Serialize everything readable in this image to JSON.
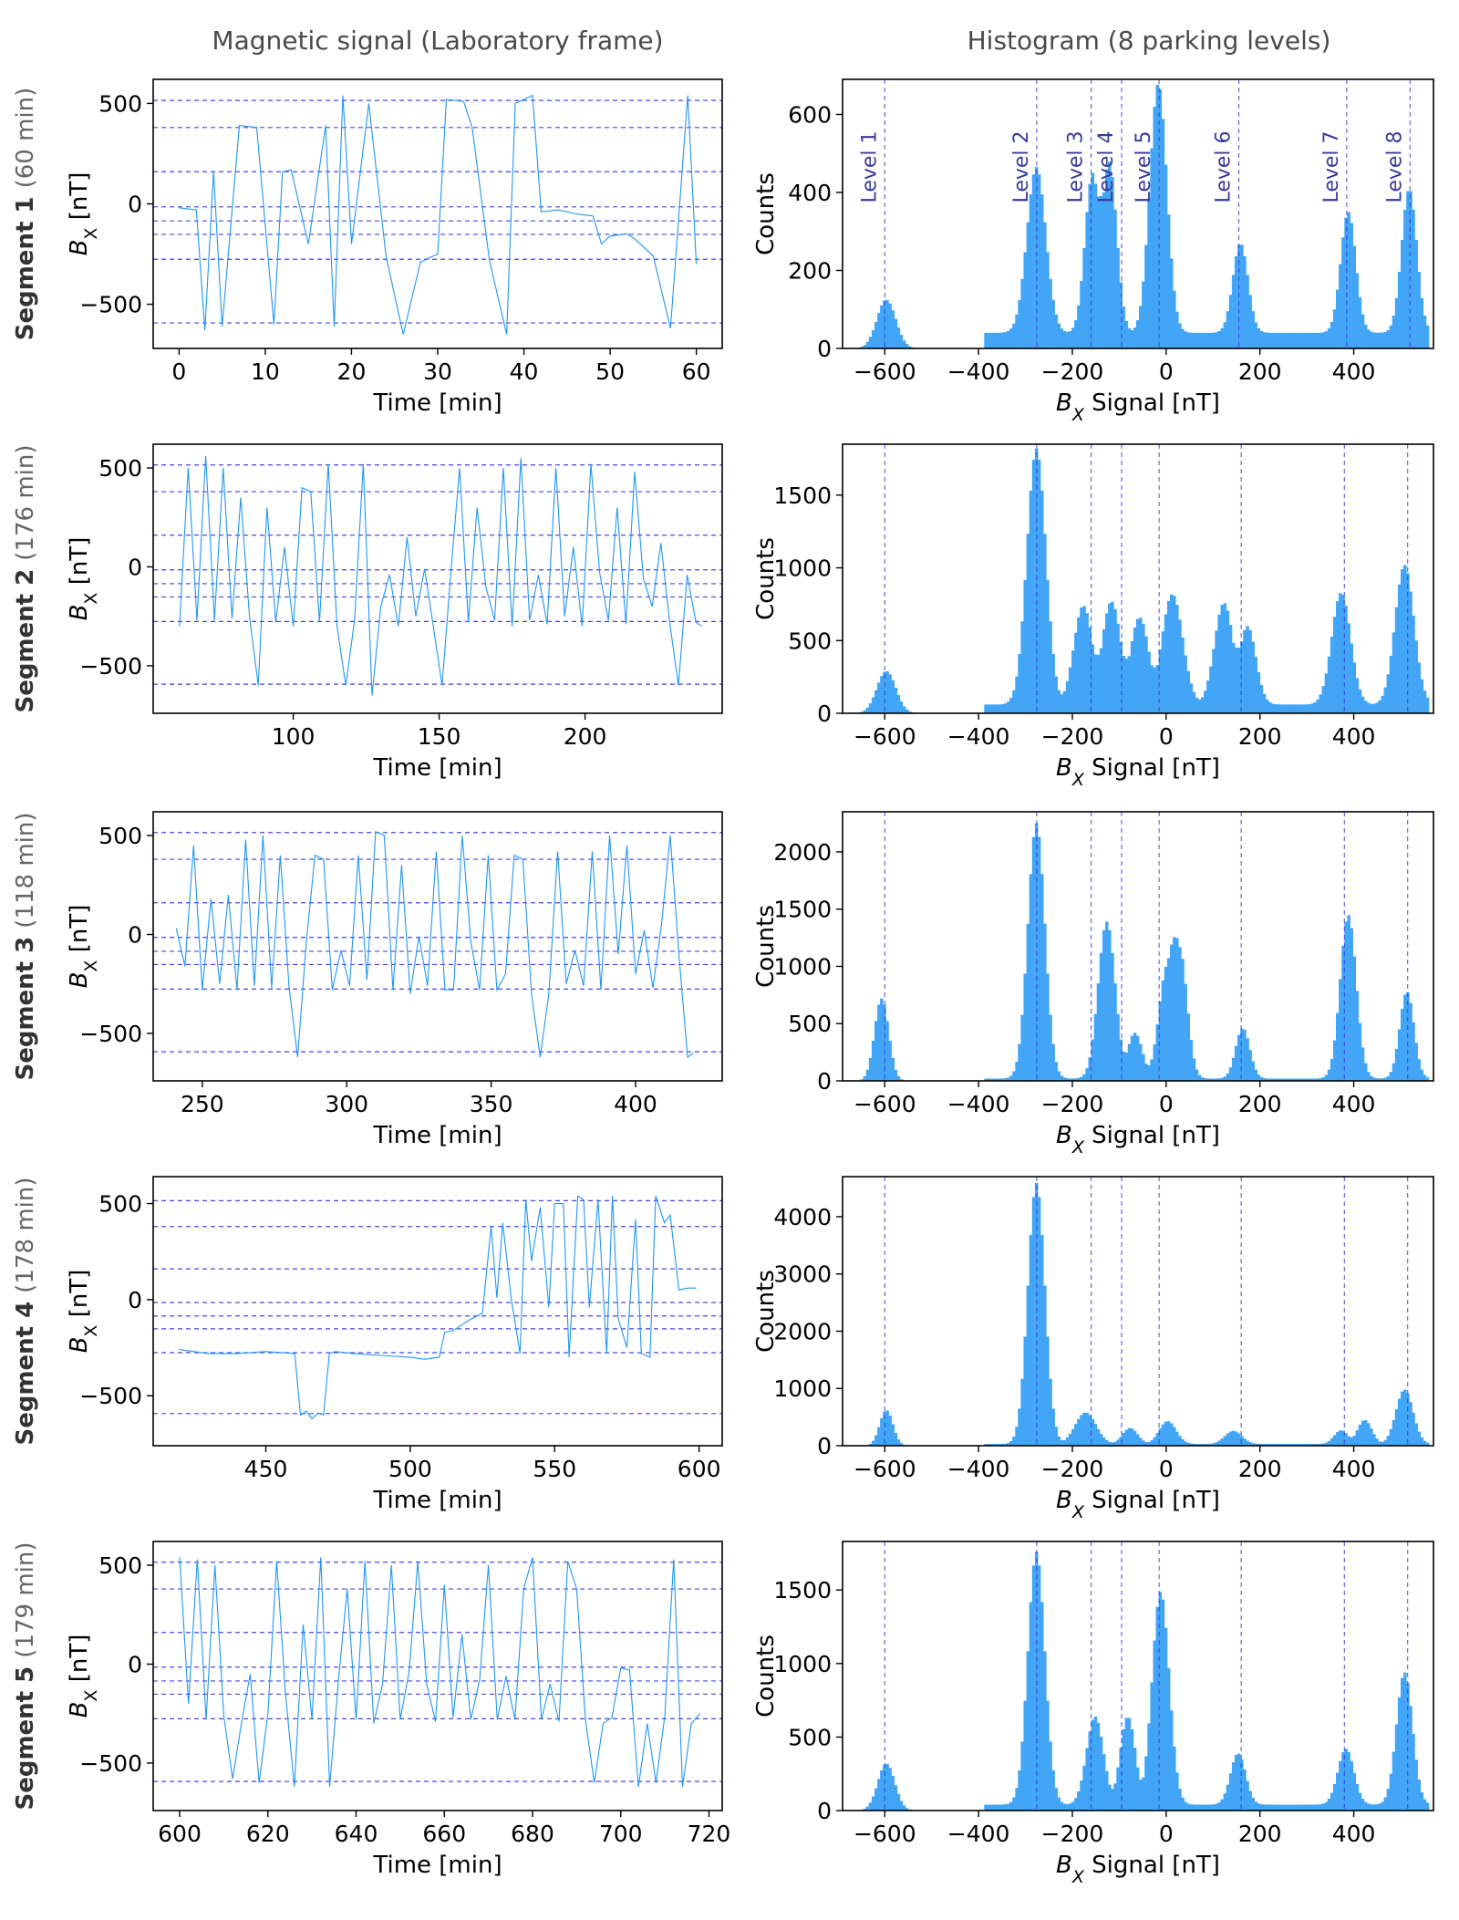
{
  "column_titles": {
    "left": "Magnetic signal (Laboratory frame)",
    "right": "Histogram (8 parking levels)"
  },
  "colors": {
    "trace": "#2196f3",
    "histogram": "#42a5f5",
    "reference": "#3333dd"
  },
  "chart_data": [
    {
      "type": "line",
      "segment": "Segment 1",
      "duration": "(60 min)",
      "xlabel": "Time [min]",
      "ylabel": "B_X [nT]",
      "xlim": [
        -3,
        63
      ],
      "ylim": [
        -720,
        620
      ],
      "xticks": [
        0,
        10,
        20,
        30,
        40,
        50,
        60
      ],
      "yticks": [
        -500,
        0,
        500
      ],
      "reference_levels": [
        -593,
        -276,
        -152,
        -85,
        -15,
        160,
        380,
        515
      ],
      "trace": {
        "x": [
          0,
          2,
          3,
          4,
          5,
          7,
          9,
          11,
          12,
          13,
          15,
          17,
          18,
          19,
          20,
          22,
          24,
          26,
          28,
          30,
          31,
          33,
          34,
          36,
          38,
          39,
          41,
          42,
          44,
          46,
          48,
          49,
          50,
          52,
          53,
          55,
          57,
          59,
          60
        ],
        "y": [
          -20,
          -30,
          -630,
          160,
          -610,
          390,
          380,
          -600,
          160,
          170,
          -200,
          390,
          -610,
          540,
          -200,
          500,
          -260,
          -650,
          -290,
          -250,
          520,
          510,
          380,
          -280,
          -650,
          500,
          540,
          -40,
          -30,
          -50,
          -60,
          -200,
          -160,
          -150,
          -180,
          -260,
          -620,
          540,
          -300
        ]
      }
    },
    {
      "type": "bar",
      "segment": "Segment 1",
      "xlabel": "B_X Signal [nT]",
      "ylabel": "Counts",
      "xlim": [
        -690,
        570
      ],
      "ylim": [
        0,
        690
      ],
      "xticks": [
        -600,
        -400,
        -200,
        0,
        200,
        400
      ],
      "yticks": [
        0,
        200,
        400,
        600
      ],
      "levels": [
        -600,
        -276,
        -160,
        -95,
        -15,
        155,
        385,
        520
      ],
      "level_labels": [
        "Level 1",
        "Level 2",
        "Level 3",
        "Level 4",
        "Level 5",
        "Level 6",
        "Level 7",
        "Level 8"
      ],
      "peaks": [
        {
          "center": -600,
          "height": 125,
          "width": 20
        },
        {
          "center": -280,
          "height": 425,
          "width": 20
        },
        {
          "center": -160,
          "height": 410,
          "width": 16
        },
        {
          "center": -125,
          "height": 440,
          "width": 16
        },
        {
          "center": -20,
          "height": 640,
          "width": 18
        },
        {
          "center": 155,
          "height": 230,
          "width": 16
        },
        {
          "center": 385,
          "height": 310,
          "width": 16
        },
        {
          "center": 515,
          "height": 370,
          "width": 16
        }
      ],
      "baseline": 40
    },
    {
      "type": "line",
      "segment": "Segment 2",
      "duration": "(176 min)",
      "xlabel": "Time [min]",
      "ylabel": "B_X [nT]",
      "xlim": [
        52,
        247
      ],
      "ylim": [
        -740,
        620
      ],
      "xticks": [
        100,
        150,
        200
      ],
      "yticks": [
        -500,
        0,
        500
      ],
      "reference_levels": [
        -593,
        -276,
        -152,
        -85,
        -15,
        160,
        380,
        515
      ],
      "trace": {
        "x": [
          61,
          64,
          67,
          70,
          73,
          76,
          79,
          82,
          85,
          88,
          91,
          94,
          97,
          100,
          103,
          106,
          109,
          112,
          115,
          118,
          121,
          124,
          127,
          130,
          133,
          136,
          139,
          142,
          145,
          148,
          151,
          154,
          157,
          160,
          163,
          166,
          169,
          172,
          175,
          178,
          181,
          184,
          187,
          190,
          193,
          196,
          199,
          202,
          205,
          208,
          211,
          214,
          217,
          220,
          223,
          226,
          229,
          232,
          235,
          238,
          240
        ],
        "y": [
          -300,
          500,
          -270,
          560,
          -270,
          500,
          -260,
          350,
          -250,
          -600,
          300,
          -280,
          100,
          -300,
          400,
          380,
          -280,
          520,
          -300,
          -600,
          -270,
          520,
          -650,
          -200,
          -40,
          -300,
          150,
          -250,
          -10,
          -300,
          -600,
          -30,
          500,
          -280,
          300,
          -100,
          -270,
          500,
          -300,
          550,
          -270,
          -40,
          -290,
          500,
          -250,
          100,
          -300,
          520,
          -30,
          -270,
          300,
          -290,
          480,
          -60,
          -200,
          120,
          -280,
          -600,
          -40,
          -280,
          -300
        ]
      }
    },
    {
      "type": "bar",
      "segment": "Segment 2",
      "xlabel": "B_X Signal [nT]",
      "ylabel": "Counts",
      "xlim": [
        -690,
        570
      ],
      "ylim": [
        0,
        1850
      ],
      "xticks": [
        -600,
        -400,
        -200,
        0,
        200,
        400
      ],
      "yticks": [
        0,
        500,
        1000,
        1500
      ],
      "levels": [
        -600,
        -276,
        -160,
        -95,
        -15,
        160,
        380,
        515
      ],
      "peaks": [
        {
          "center": -600,
          "height": 290,
          "width": 20
        },
        {
          "center": -280,
          "height": 1760,
          "width": 20
        },
        {
          "center": -180,
          "height": 680,
          "width": 20
        },
        {
          "center": -120,
          "height": 710,
          "width": 20
        },
        {
          "center": -60,
          "height": 600,
          "width": 20
        },
        {
          "center": 10,
          "height": 760,
          "width": 22
        },
        {
          "center": 120,
          "height": 700,
          "width": 20
        },
        {
          "center": 170,
          "height": 540,
          "width": 18
        },
        {
          "center": 370,
          "height": 770,
          "width": 20
        },
        {
          "center": 505,
          "height": 960,
          "width": 20
        }
      ],
      "baseline": 60
    },
    {
      "type": "line",
      "segment": "Segment 3",
      "duration": "(118 min)",
      "xlabel": "Time [min]",
      "ylabel": "B_X [nT]",
      "xlim": [
        233,
        430
      ],
      "ylim": [
        -740,
        620
      ],
      "xticks": [
        250,
        300,
        350,
        400
      ],
      "yticks": [
        -500,
        0,
        500
      ],
      "reference_levels": [
        -593,
        -276,
        -152,
        -85,
        -15,
        160,
        380,
        515
      ],
      "trace": {
        "x": [
          241,
          244,
          247,
          250,
          253,
          256,
          259,
          262,
          265,
          268,
          271,
          274,
          277,
          280,
          283,
          286,
          289,
          292,
          295,
          298,
          301,
          304,
          307,
          310,
          313,
          316,
          319,
          322,
          325,
          328,
          331,
          334,
          337,
          340,
          343,
          346,
          349,
          352,
          355,
          358,
          361,
          364,
          367,
          370,
          373,
          376,
          379,
          382,
          385,
          388,
          391,
          394,
          397,
          400,
          403,
          406,
          409,
          412,
          415,
          418,
          420
        ],
        "y": [
          30,
          -160,
          450,
          -280,
          180,
          -250,
          200,
          -280,
          480,
          -260,
          500,
          -270,
          400,
          -260,
          -620,
          -40,
          400,
          380,
          -280,
          -80,
          -260,
          400,
          -230,
          520,
          500,
          -280,
          350,
          -300,
          -10,
          -260,
          420,
          -280,
          -280,
          500,
          -40,
          -280,
          400,
          -280,
          -200,
          400,
          380,
          -300,
          -620,
          -300,
          420,
          -250,
          -80,
          -260,
          420,
          -280,
          500,
          -100,
          450,
          -200,
          20,
          -270,
          50,
          500,
          -100,
          -620,
          -600
        ]
      }
    },
    {
      "type": "bar",
      "segment": "Segment 3",
      "xlabel": "B_X Signal [nT]",
      "ylabel": "Counts",
      "xlim": [
        -690,
        570
      ],
      "ylim": [
        0,
        2350
      ],
      "xticks": [
        -600,
        -400,
        -200,
        0,
        200,
        400
      ],
      "yticks": [
        0,
        500,
        1000,
        1500,
        2000
      ],
      "levels": [
        -600,
        -276,
        -160,
        -95,
        -15,
        160,
        380,
        515
      ],
      "peaks": [
        {
          "center": -610,
          "height": 720,
          "width": 15
        },
        {
          "center": -280,
          "height": 2230,
          "width": 18
        },
        {
          "center": -130,
          "height": 1370,
          "width": 18
        },
        {
          "center": -70,
          "height": 400,
          "width": 16
        },
        {
          "center": 0,
          "height": 1000,
          "width": 18
        },
        {
          "center": 25,
          "height": 1150,
          "width": 16
        },
        {
          "center": 160,
          "height": 440,
          "width": 15
        },
        {
          "center": 385,
          "height": 1430,
          "width": 17
        },
        {
          "center": 510,
          "height": 760,
          "width": 15
        }
      ],
      "baseline": 20
    },
    {
      "type": "line",
      "segment": "Segment 4",
      "duration": "(178 min)",
      "xlabel": "Time [min]",
      "ylabel": "B_X [nT]",
      "xlim": [
        411,
        608
      ],
      "ylim": [
        -760,
        640
      ],
      "xticks": [
        450,
        500,
        550,
        600
      ],
      "yticks": [
        -500,
        0,
        500
      ],
      "reference_levels": [
        -593,
        -276,
        -152,
        -85,
        -15,
        160,
        380,
        515
      ],
      "trace": {
        "x": [
          420,
          430,
          440,
          450,
          460,
          462,
          464,
          466,
          468,
          470,
          472,
          474,
          480,
          490,
          500,
          505,
          510,
          512,
          515,
          520,
          525,
          528,
          530,
          532,
          535,
          538,
          540,
          542,
          545,
          548,
          550,
          553,
          555,
          558,
          560,
          562,
          565,
          568,
          570,
          572,
          575,
          578,
          580,
          583,
          585,
          588,
          590,
          593,
          596,
          599
        ],
        "y": [
          -260,
          -280,
          -280,
          -270,
          -280,
          -600,
          -580,
          -620,
          -590,
          -600,
          -280,
          -270,
          -280,
          -290,
          -300,
          -310,
          -300,
          -170,
          -160,
          -110,
          -70,
          380,
          10,
          400,
          0,
          -280,
          520,
          200,
          480,
          -40,
          500,
          500,
          -300,
          540,
          520,
          -40,
          520,
          -280,
          540,
          -100,
          -250,
          420,
          -280,
          -300,
          540,
          400,
          440,
          50,
          60,
          60
        ]
      }
    },
    {
      "type": "bar",
      "segment": "Segment 4",
      "xlabel": "B_X Signal [nT]",
      "ylabel": "Counts",
      "xlim": [
        -690,
        570
      ],
      "ylim": [
        0,
        4700
      ],
      "xticks": [
        -600,
        -400,
        -200,
        0,
        200,
        400
      ],
      "yticks": [
        0,
        1000,
        2000,
        3000,
        4000
      ],
      "levels": [
        -600,
        -276,
        -160,
        -95,
        -15,
        160,
        380,
        515
      ],
      "peaks": [
        {
          "center": -600,
          "height": 620,
          "width": 14
        },
        {
          "center": -280,
          "height": 4560,
          "width": 18
        },
        {
          "center": -175,
          "height": 550,
          "width": 22
        },
        {
          "center": -80,
          "height": 280,
          "width": 16
        },
        {
          "center": 0,
          "height": 400,
          "width": 18
        },
        {
          "center": 140,
          "height": 230,
          "width": 18
        },
        {
          "center": 370,
          "height": 240,
          "width": 15
        },
        {
          "center": 420,
          "height": 420,
          "width": 15
        },
        {
          "center": 505,
          "height": 950,
          "width": 18
        }
      ],
      "baseline": 30
    },
    {
      "type": "line",
      "segment": "Segment 5",
      "duration": "(179 min)",
      "xlabel": "Time [min]",
      "ylabel": "B_X [nT]",
      "xlim": [
        594,
        723
      ],
      "ylim": [
        -740,
        620
      ],
      "xticks": [
        600,
        620,
        640,
        660,
        680,
        700,
        720
      ],
      "yticks": [
        -500,
        0,
        500
      ],
      "reference_levels": [
        -593,
        -276,
        -152,
        -85,
        -15,
        160,
        380,
        515
      ],
      "trace": {
        "x": [
          600,
          602,
          604,
          606,
          608,
          610,
          612,
          614,
          616,
          618,
          620,
          622,
          624,
          626,
          628,
          630,
          632,
          634,
          636,
          638,
          640,
          642,
          644,
          646,
          648,
          650,
          652,
          654,
          656,
          658,
          660,
          662,
          664,
          666,
          668,
          670,
          672,
          674,
          676,
          678,
          680,
          682,
          684,
          686,
          688,
          690,
          692,
          694,
          696,
          698,
          700,
          702,
          704,
          706,
          708,
          710,
          712,
          714,
          716,
          718
        ],
        "y": [
          540,
          -200,
          530,
          -280,
          500,
          -260,
          -580,
          -300,
          -50,
          -600,
          -250,
          520,
          -150,
          -620,
          200,
          -280,
          540,
          -620,
          -80,
          380,
          -280,
          520,
          -300,
          -100,
          500,
          -280,
          -40,
          520,
          -100,
          -290,
          400,
          -270,
          150,
          -280,
          -80,
          500,
          -280,
          -60,
          -280,
          380,
          540,
          -280,
          -100,
          -290,
          520,
          380,
          -280,
          -600,
          -300,
          -270,
          -20,
          -30,
          -620,
          -300,
          -600,
          -260,
          530,
          -620,
          -300,
          -250
        ]
      }
    },
    {
      "type": "bar",
      "segment": "Segment 5",
      "xlabel": "B_X Signal [nT]",
      "ylabel": "Counts",
      "xlim": [
        -690,
        570
      ],
      "ylim": [
        0,
        1830
      ],
      "xticks": [
        -600,
        -400,
        -200,
        0,
        200,
        400
      ],
      "yticks": [
        0,
        500,
        1000,
        1500
      ],
      "levels": [
        -600,
        -276,
        -160,
        -95,
        -15,
        160,
        380,
        515
      ],
      "peaks": [
        {
          "center": -600,
          "height": 320,
          "width": 18
        },
        {
          "center": -280,
          "height": 1720,
          "width": 18
        },
        {
          "center": -155,
          "height": 600,
          "width": 18
        },
        {
          "center": -85,
          "height": 600,
          "width": 16
        },
        {
          "center": -15,
          "height": 1450,
          "width": 18
        },
        {
          "center": 150,
          "height": 350,
          "width": 16
        },
        {
          "center": 380,
          "height": 380,
          "width": 17
        },
        {
          "center": 505,
          "height": 900,
          "width": 17
        }
      ],
      "baseline": 40
    }
  ]
}
